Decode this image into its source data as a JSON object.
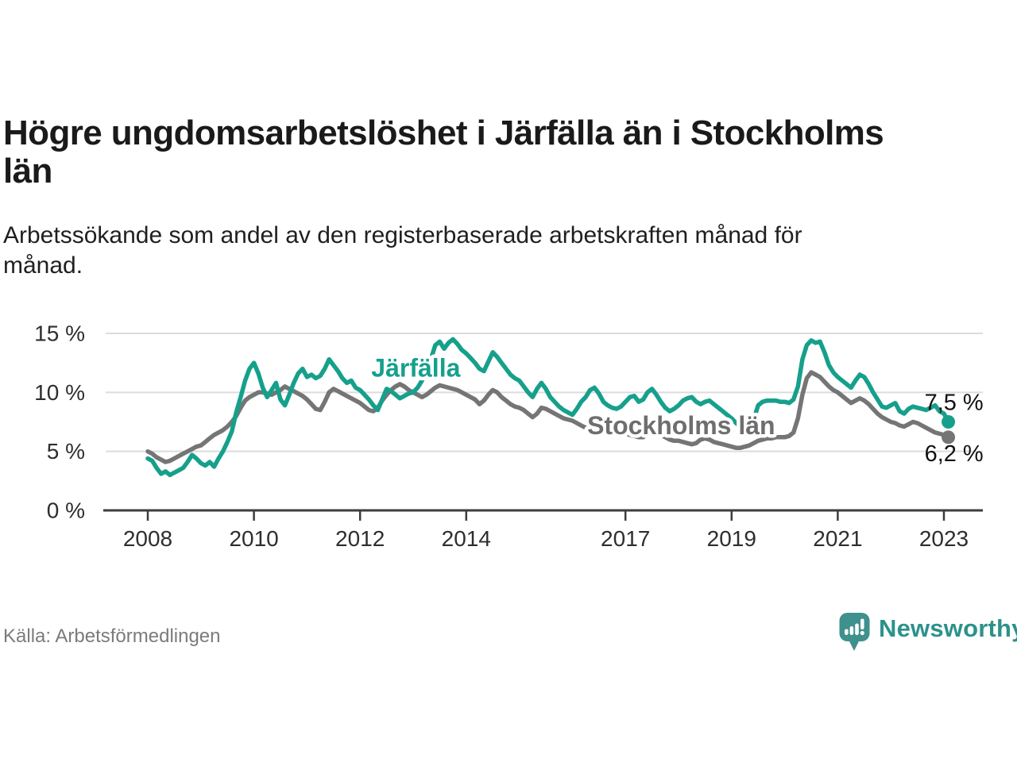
{
  "header": {
    "title_lines": [
      "Högre ungdomsarbetslöshet i Järfälla än i Stockholms",
      "län"
    ],
    "subtitle_lines": [
      "Arbetssökande som andel av den registerbaserade arbetskraften månad för",
      "månad."
    ]
  },
  "footer": {
    "source": "Källa: Arbetsförmedlingen",
    "brand_name": "Newsworthy",
    "brand_color": "#2d918b",
    "brand_icon_color": "#3e918c"
  },
  "chart_data": {
    "type": "line",
    "unit": "%",
    "x_start": 2008,
    "points_per_year": 12,
    "ylim": [
      0,
      15.5
    ],
    "grid": "horizontal",
    "legend_position": "inline-labels",
    "colors": {
      "axis": "#3d3d3d",
      "gridline": "#dcdcdc",
      "tick_text": "#2e2e2e",
      "end_label_text": "#111111"
    },
    "y_ticks": [
      {
        "value": 0,
        "label": "0 %"
      },
      {
        "value": 5,
        "label": "5 %"
      },
      {
        "value": 10,
        "label": "10 %"
      },
      {
        "value": 15,
        "label": "15 %"
      }
    ],
    "x_ticks": [
      {
        "value": 2008,
        "label": "2008"
      },
      {
        "value": 2010,
        "label": "2010"
      },
      {
        "value": 2012,
        "label": "2012"
      },
      {
        "value": 2014,
        "label": "2014"
      },
      {
        "value": 2017,
        "label": "2017"
      },
      {
        "value": 2019,
        "label": "2019"
      },
      {
        "value": 2021,
        "label": "2021"
      },
      {
        "value": 2023,
        "label": "2023"
      }
    ],
    "series": [
      {
        "name": "Järfälla",
        "color": "#16a08c",
        "label_color": "#16a08c",
        "end_label": "7,5 %",
        "end_value": 7.5,
        "label_pos": {
          "year": 2013.05,
          "pct": 11.35
        },
        "values": [
          4.4,
          4.2,
          3.6,
          3.1,
          3.3,
          3.0,
          3.2,
          3.4,
          3.6,
          4.1,
          4.7,
          4.4,
          4.0,
          3.8,
          4.1,
          3.7,
          4.4,
          5.0,
          5.8,
          6.7,
          8.3,
          9.6,
          11.0,
          12.0,
          12.5,
          11.6,
          10.4,
          9.6,
          10.2,
          10.8,
          9.4,
          8.9,
          9.8,
          10.8,
          11.6,
          12.0,
          11.3,
          11.5,
          11.2,
          11.4,
          12.0,
          12.8,
          12.3,
          11.8,
          11.2,
          10.8,
          11.0,
          10.4,
          10.2,
          9.8,
          9.4,
          8.9,
          8.5,
          9.4,
          10.3,
          10.1,
          9.8,
          9.5,
          9.7,
          9.9,
          10.0,
          10.4,
          11.0,
          11.9,
          12.8,
          14.0,
          14.3,
          13.7,
          14.2,
          14.5,
          14.1,
          13.6,
          13.3,
          12.9,
          12.5,
          12.0,
          11.8,
          12.6,
          13.4,
          13.0,
          12.5,
          12.0,
          11.5,
          11.2,
          11.0,
          10.5,
          10.0,
          9.6,
          10.3,
          10.8,
          10.3,
          9.6,
          9.2,
          8.8,
          8.5,
          8.3,
          8.1,
          8.6,
          9.2,
          9.6,
          10.2,
          10.4,
          9.9,
          9.2,
          8.9,
          8.7,
          8.6,
          8.8,
          9.2,
          9.6,
          9.7,
          9.2,
          9.4,
          10.0,
          10.3,
          9.8,
          9.2,
          8.7,
          8.4,
          8.6,
          8.9,
          9.3,
          9.5,
          9.6,
          9.2,
          9.0,
          9.2,
          9.3,
          9.0,
          8.7,
          8.4,
          8.1,
          7.8,
          7.4,
          7.1,
          7.2,
          7.5,
          7.7,
          8.9,
          9.2,
          9.3,
          9.3,
          9.3,
          9.2,
          9.2,
          9.1,
          9.4,
          10.5,
          12.8,
          14.0,
          14.4,
          14.2,
          14.3,
          13.4,
          12.3,
          11.7,
          11.3,
          11.0,
          10.7,
          10.4,
          11.0,
          11.5,
          11.3,
          10.7,
          10.0,
          9.4,
          8.8,
          8.7,
          8.9,
          9.1,
          8.4,
          8.2,
          8.6,
          8.8,
          8.7,
          8.6,
          8.5,
          8.7,
          8.9,
          8.4,
          8.2,
          7.5
        ]
      },
      {
        "name": "Stockholms län",
        "color": "#757575",
        "label_color": "#6e6e6e",
        "end_label": "6,2 %",
        "end_value": 6.2,
        "label_pos": {
          "year": 2018.05,
          "pct": 6.45
        },
        "values": [
          5.0,
          4.8,
          4.5,
          4.3,
          4.1,
          4.2,
          4.4,
          4.6,
          4.8,
          5.0,
          5.2,
          5.4,
          5.5,
          5.8,
          6.1,
          6.4,
          6.6,
          6.8,
          7.1,
          7.5,
          8.0,
          8.7,
          9.3,
          9.6,
          9.8,
          10.0,
          10.0,
          9.9,
          9.8,
          10.0,
          10.2,
          10.5,
          10.3,
          10.1,
          9.9,
          9.7,
          9.4,
          9.0,
          8.6,
          8.5,
          9.2,
          10.0,
          10.3,
          10.1,
          9.9,
          9.7,
          9.5,
          9.3,
          9.1,
          8.8,
          8.5,
          8.4,
          8.7,
          9.3,
          9.8,
          10.2,
          10.5,
          10.7,
          10.5,
          10.2,
          10.0,
          9.8,
          9.6,
          9.8,
          10.1,
          10.4,
          10.6,
          10.5,
          10.4,
          10.3,
          10.2,
          10.0,
          9.8,
          9.6,
          9.4,
          9.0,
          9.3,
          9.8,
          10.2,
          10.0,
          9.6,
          9.3,
          9.0,
          8.8,
          8.7,
          8.5,
          8.2,
          7.9,
          8.2,
          8.7,
          8.6,
          8.4,
          8.2,
          8.0,
          7.8,
          7.7,
          7.6,
          7.4,
          7.2,
          7.0,
          7.1,
          7.4,
          7.4,
          7.2,
          7.0,
          6.8,
          6.7,
          6.6,
          6.5,
          6.4,
          6.3,
          6.2,
          6.2,
          6.5,
          6.7,
          6.6,
          6.4,
          6.2,
          6.0,
          5.9,
          5.9,
          5.8,
          5.7,
          5.6,
          5.7,
          6.0,
          6.1,
          6.0,
          5.8,
          5.7,
          5.6,
          5.5,
          5.4,
          5.3,
          5.3,
          5.4,
          5.5,
          5.7,
          5.9,
          6.0,
          6.1,
          6.1,
          6.2,
          6.2,
          6.2,
          6.3,
          6.6,
          7.8,
          9.8,
          11.2,
          11.7,
          11.5,
          11.3,
          10.9,
          10.5,
          10.2,
          10.0,
          9.7,
          9.4,
          9.1,
          9.3,
          9.5,
          9.3,
          9.0,
          8.6,
          8.2,
          7.9,
          7.7,
          7.5,
          7.4,
          7.2,
          7.1,
          7.3,
          7.5,
          7.4,
          7.2,
          7.0,
          6.8,
          6.6,
          6.5,
          6.4,
          6.2
        ]
      }
    ]
  }
}
